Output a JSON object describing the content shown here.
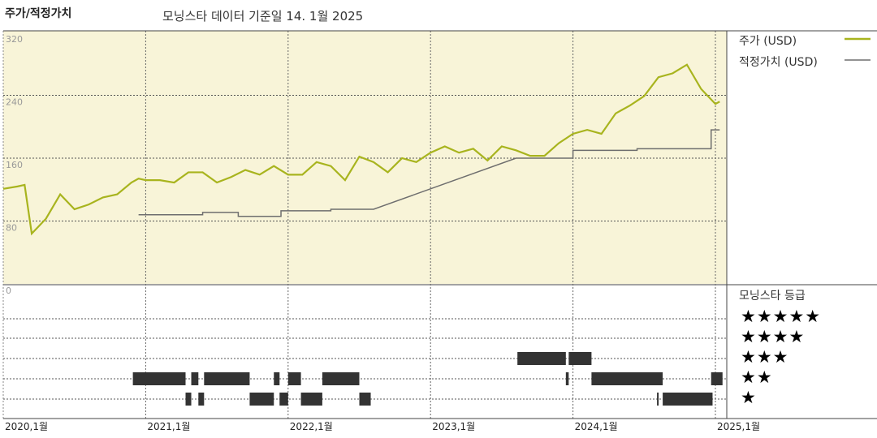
{
  "header": {
    "title": "주가/적정가치",
    "subtitle": "모닝스타 데이터 기준일 14. 1월 2025"
  },
  "legend": {
    "price_label": "주가 (USD)",
    "fair_value_label": "적정가치 (USD)",
    "rating_title": "모닝스타 등급",
    "star_labels": [
      "★★★★★",
      "★★★★",
      "★★★",
      "★★",
      "★"
    ]
  },
  "colors": {
    "price": "#a8b41e",
    "fair_value": "#6e6e6e",
    "plot_background": "#f8f4d8",
    "rating_bar": "#333333"
  },
  "chart_data": [
    {
      "type": "line",
      "ylim": [
        0,
        320
      ],
      "yticks": [
        "320",
        "240",
        "160",
        "80",
        "0"
      ],
      "ytick_values": [
        320,
        240,
        160,
        80,
        0
      ],
      "xlim": [
        2020.0,
        2025.1
      ],
      "xticks": [
        "2020,1월",
        "2021,1월",
        "2022,1월",
        "2023,1월",
        "2024,1월",
        "2025,1월"
      ],
      "xtick_values": [
        2020,
        2021,
        2022,
        2023,
        2024,
        2025
      ],
      "grid": true,
      "legend_position": "right",
      "series": [
        {
          "name": "주가 (USD)",
          "x": [
            2020.0,
            2020.1,
            2020.15,
            2020.2,
            2020.3,
            2020.4,
            2020.5,
            2020.6,
            2020.7,
            2020.8,
            2020.9,
            2020.95,
            2021.0,
            2021.1,
            2021.2,
            2021.3,
            2021.4,
            2021.5,
            2021.6,
            2021.7,
            2021.8,
            2021.9,
            2022.0,
            2022.1,
            2022.2,
            2022.3,
            2022.4,
            2022.5,
            2022.6,
            2022.7,
            2022.8,
            2022.9,
            2023.0,
            2023.1,
            2023.2,
            2023.3,
            2023.4,
            2023.5,
            2023.6,
            2023.7,
            2023.8,
            2023.9,
            2024.0,
            2024.1,
            2024.2,
            2024.3,
            2024.4,
            2024.5,
            2024.6,
            2024.7,
            2024.8,
            2024.9,
            2025.0,
            2025.03
          ],
          "y": [
            121,
            124,
            126,
            64,
            83,
            114,
            95,
            101,
            110,
            114,
            129,
            134,
            132,
            132,
            129,
            142,
            142,
            129,
            136,
            145,
            139,
            150,
            139,
            139,
            155,
            150,
            132,
            162,
            155,
            142,
            160,
            155,
            167,
            175,
            167,
            172,
            157,
            175,
            170,
            163,
            163,
            179,
            191,
            196,
            191,
            217,
            227,
            239,
            263,
            268,
            279,
            248,
            229,
            232
          ]
        },
        {
          "name": "적정가치 (USD)",
          "step": true,
          "x": [
            2020.95,
            2021.4,
            2021.65,
            2021.95,
            2022.3,
            2022.6,
            2023.6,
            2024.0,
            2024.45,
            2024.97,
            2025.03
          ],
          "y": [
            88,
            91,
            86,
            93,
            95,
            95,
            160,
            170,
            172,
            196,
            196
          ]
        }
      ]
    },
    {
      "type": "rating-timeline",
      "title": "모닝스타 등급",
      "periods": [
        {
          "stars": 2,
          "start": 2020.91,
          "end": 2021.28
        },
        {
          "stars": 1,
          "start": 2021.28,
          "end": 2021.32
        },
        {
          "stars": 2,
          "start": 2021.32,
          "end": 2021.37
        },
        {
          "stars": 1,
          "start": 2021.37,
          "end": 2021.41
        },
        {
          "stars": 2,
          "start": 2021.41,
          "end": 2021.73
        },
        {
          "stars": 1,
          "start": 2021.73,
          "end": 2021.9
        },
        {
          "stars": 2,
          "start": 2021.9,
          "end": 2021.94
        },
        {
          "stars": 1,
          "start": 2021.94,
          "end": 2022.0
        },
        {
          "stars": 2,
          "start": 2022.0,
          "end": 2022.09
        },
        {
          "stars": 1,
          "start": 2022.09,
          "end": 2022.24
        },
        {
          "stars": 2,
          "start": 2022.24,
          "end": 2022.5
        },
        {
          "stars": 1,
          "start": 2022.5,
          "end": 2022.58
        },
        {
          "stars": 3,
          "start": 2023.61,
          "end": 2023.95
        },
        {
          "stars": 2,
          "start": 2023.95,
          "end": 2023.97
        },
        {
          "stars": 3,
          "start": 2023.97,
          "end": 2024.13
        },
        {
          "stars": 2,
          "start": 2024.13,
          "end": 2024.63
        },
        {
          "stars": 1,
          "start": 2024.59,
          "end": 2024.6
        },
        {
          "stars": 1,
          "start": 2024.63,
          "end": 2024.98
        },
        {
          "stars": 2,
          "start": 2024.97,
          "end": 2025.05
        }
      ]
    }
  ]
}
